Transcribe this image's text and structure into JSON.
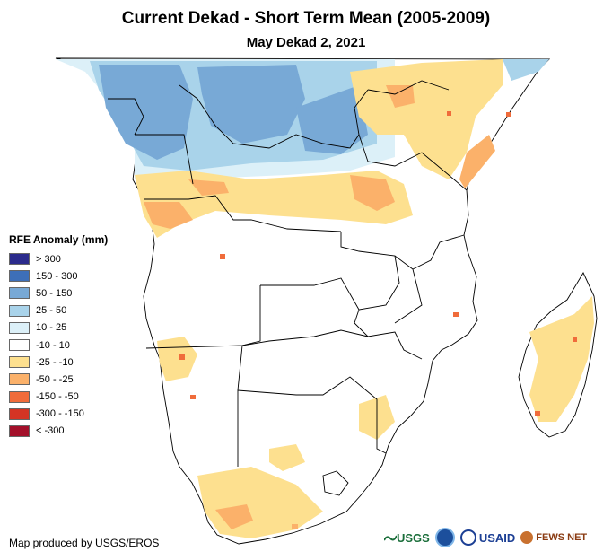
{
  "header": {
    "title": "Current Dekad - Short Term Mean (2005-2009)",
    "subtitle": "May Dekad 2, 2021"
  },
  "legend": {
    "title": "RFE Anomaly (mm)",
    "items": [
      {
        "label": "> 300",
        "color": "#2b2b8c"
      },
      {
        "label": "150 - 300",
        "color": "#3d6fb8"
      },
      {
        "label": "50 - 150",
        "color": "#78a9d6"
      },
      {
        "label": "25 - 50",
        "color": "#a9d3ea"
      },
      {
        "label": "10 - 25",
        "color": "#dcf0f8"
      },
      {
        "label": "-10 - 10",
        "color": "#ffffff"
      },
      {
        "label": "-25 - -10",
        "color": "#fde08f"
      },
      {
        "label": "-50 - -25",
        "color": "#fbb16a"
      },
      {
        "label": "-150 - -50",
        "color": "#f06c3b"
      },
      {
        "label": "-300 - -150",
        "color": "#d43424"
      },
      {
        "label": "< -300",
        "color": "#a3102a"
      }
    ]
  },
  "credit": "Map produced by USGS/EROS",
  "logos": {
    "usgs": "USGS",
    "usaid": "USAID",
    "fewsnet": "FEWS NET"
  }
}
